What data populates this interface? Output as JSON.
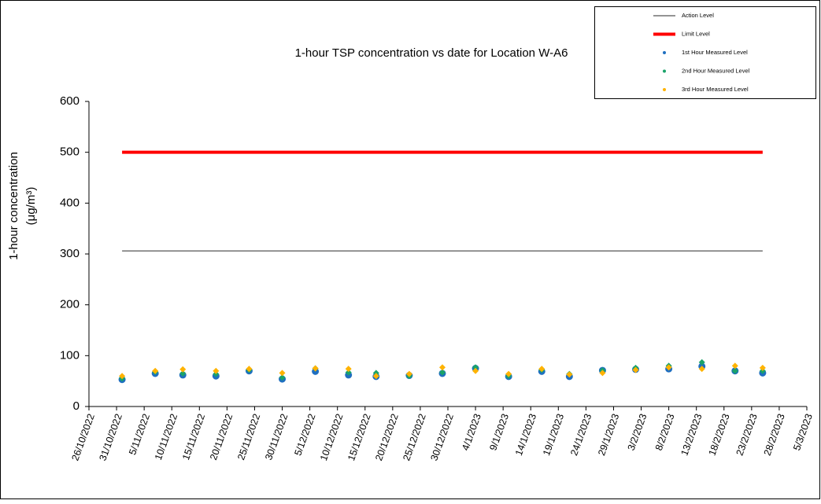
{
  "chart_data": {
    "type": "line-scatter",
    "title": "1-hour TSP concentration vs date for Location  W-A6",
    "y_label": "1-hour concentration",
    "y_label_unit": "(μg/m³)",
    "x": [
      "2022-11-01",
      "2022-11-07",
      "2022-11-12",
      "2022-11-18",
      "2022-11-24",
      "2022-11-30",
      "2022-12-06",
      "2022-12-12",
      "2022-12-17",
      "2022-12-23",
      "2022-12-29",
      "2023-01-04",
      "2023-01-10",
      "2023-01-16",
      "2023-01-21",
      "2023-01-27",
      "2023-02-02",
      "2023-02-08",
      "2023-02-14",
      "2023-02-20",
      "2023-02-25"
    ],
    "series": [
      {
        "name": "Action Level",
        "color": "#555555",
        "mark": "line",
        "width": 1.2,
        "values": [
          306,
          306,
          306,
          306,
          306,
          306,
          306,
          306,
          306,
          306,
          306,
          306,
          306,
          306,
          306,
          306,
          306,
          306,
          306,
          306,
          306
        ]
      },
      {
        "name": "Limit Level",
        "color": "#ff0000",
        "mark": "line",
        "width": 4,
        "values": [
          500,
          500,
          500,
          500,
          500,
          500,
          500,
          500,
          500,
          500,
          500,
          500,
          500,
          500,
          500,
          500,
          500,
          500,
          500,
          500,
          500
        ]
      },
      {
        "name": "1st Hour Measured Level",
        "color": "#1f6fc0",
        "mark": "circle",
        "values": [
          53,
          65,
          62,
          60,
          70,
          54,
          69,
          62,
          59,
          61,
          65,
          75,
          59,
          69,
          59,
          71,
          73,
          74,
          79,
          70,
          66
        ]
      },
      {
        "name": "2nd Hour Measured Level",
        "color": "#1aa36a",
        "mark": "diamond",
        "values": [
          55,
          68,
          65,
          64,
          72,
          57,
          75,
          67,
          66,
          60,
          67,
          77,
          60,
          72,
          64,
          71,
          76,
          80,
          87,
          70,
          70
        ]
      },
      {
        "name": "3rd Hour Measured Level",
        "color": "#ffb300",
        "mark": "diamond",
        "values": [
          60,
          70,
          73,
          70,
          74,
          66,
          75,
          74,
          60,
          64,
          77,
          70,
          64,
          74,
          63,
          66,
          72,
          77,
          74,
          80,
          76
        ]
      }
    ],
    "xlim": [
      "2022-10-26",
      "2023-03-05"
    ],
    "xticks": [
      {
        "value": "2022-10-26",
        "label": "26/10/2022"
      },
      {
        "value": "2022-10-31",
        "label": "31/10/2022"
      },
      {
        "value": "2022-11-05",
        "label": "5/11/2022"
      },
      {
        "value": "2022-11-10",
        "label": "10/11/2022"
      },
      {
        "value": "2022-11-15",
        "label": "15/11/2022"
      },
      {
        "value": "2022-11-20",
        "label": "20/11/2022"
      },
      {
        "value": "2022-11-25",
        "label": "25/11/2022"
      },
      {
        "value": "2022-11-30",
        "label": "30/11/2022"
      },
      {
        "value": "2022-12-05",
        "label": "5/12/2022"
      },
      {
        "value": "2022-12-10",
        "label": "10/12/2022"
      },
      {
        "value": "2022-12-15",
        "label": "15/12/2022"
      },
      {
        "value": "2022-12-20",
        "label": "20/12/2022"
      },
      {
        "value": "2022-12-25",
        "label": "25/12/2022"
      },
      {
        "value": "2022-12-30",
        "label": "30/12/2022"
      },
      {
        "value": "2023-01-04",
        "label": "4/1/2023"
      },
      {
        "value": "2023-01-09",
        "label": "9/1/2023"
      },
      {
        "value": "2023-01-14",
        "label": "14/1/2023"
      },
      {
        "value": "2023-01-19",
        "label": "19/1/2023"
      },
      {
        "value": "2023-01-24",
        "label": "24/1/2023"
      },
      {
        "value": "2023-01-29",
        "label": "29/1/2023"
      },
      {
        "value": "2023-02-03",
        "label": "3/2/2023"
      },
      {
        "value": "2023-02-08",
        "label": "8/2/2023"
      },
      {
        "value": "2023-02-13",
        "label": "13/2/2023"
      },
      {
        "value": "2023-02-18",
        "label": "18/2/2023"
      },
      {
        "value": "2023-02-23",
        "label": "23/2/2023"
      },
      {
        "value": "2023-02-28",
        "label": "28/2/2023"
      },
      {
        "value": "2023-03-05",
        "label": "5/3/2023"
      }
    ],
    "ylim": [
      0,
      600
    ],
    "yticks": [
      0,
      100,
      200,
      300,
      400,
      500,
      600
    ],
    "legend": "top-right"
  }
}
